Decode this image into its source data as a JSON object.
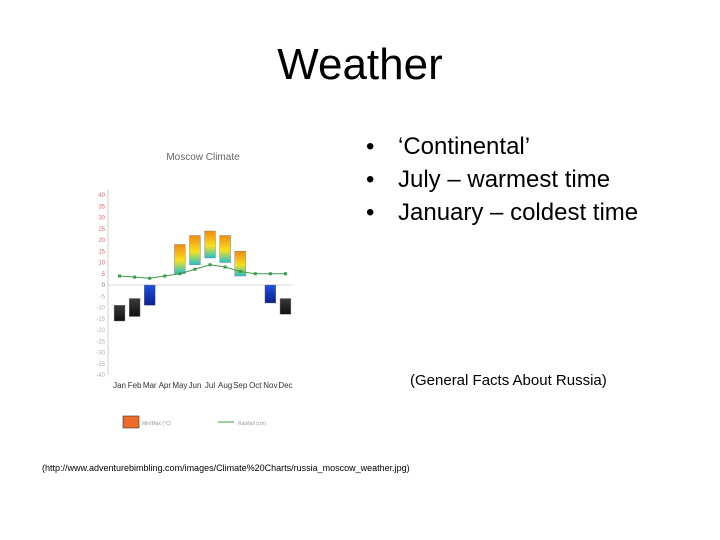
{
  "slide": {
    "title": "Weather",
    "bullets": [
      "‘Continental’",
      "July – warmest time",
      "January – coldest time"
    ],
    "caption": "(General Facts About Russia)",
    "source": "(http://www.adventurebimbling.com/images/Climate%20Charts/russia_moscow_weather.jpg)"
  },
  "chart_data": {
    "type": "bar",
    "title": "Moscow Climate",
    "categories": [
      "Jan",
      "Feb",
      "Mar",
      "Apr",
      "May",
      "Jun",
      "Jul",
      "Aug",
      "Sep",
      "Oct",
      "Nov",
      "Dec"
    ],
    "yticks": [
      40,
      35,
      30,
      25,
      20,
      15,
      10,
      5,
      0,
      -5,
      -10,
      -15,
      -20,
      -25,
      -30,
      -35,
      -40
    ],
    "ylim": [
      -40,
      40
    ],
    "grid": false,
    "series": [
      {
        "name": "Min/Max (°C)",
        "kind": "floating-bar",
        "min": [
          -16,
          -14,
          -9,
          null,
          5,
          9,
          12,
          10,
          4,
          null,
          -8,
          -13
        ],
        "max": [
          -9,
          -6,
          0,
          null,
          18,
          22,
          24,
          22,
          15,
          null,
          0,
          -6
        ]
      },
      {
        "name": "Rainfall (cm)",
        "kind": "line",
        "values": [
          4,
          3.5,
          3,
          4,
          5,
          7,
          9,
          8,
          6,
          5,
          5,
          5
        ]
      }
    ],
    "bar_colors": {
      "cold": "#1a1a1a",
      "cool": "#1030b0",
      "mild": "#22c0d0",
      "warm": "#f7d21e",
      "hot": "#f08a10",
      "line": "#3a9a4a"
    }
  }
}
